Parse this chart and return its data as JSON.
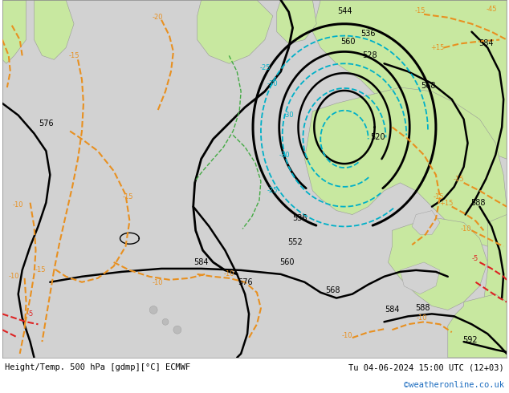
{
  "title_left": "Height/Temp. 500 hPa [gdmp][°C] ECMWF",
  "title_right": "Tu 04-06-2024 15:00 UTC (12+03)",
  "watermark": "©weatheronline.co.uk",
  "fig_width": 6.34,
  "fig_height": 4.9,
  "dpi": 100,
  "sea_color": "#d2d2d2",
  "land_color": "#c8e8a0",
  "land_color2": "#b8d888",
  "black_lw": 1.6,
  "orange_color": "#e89020",
  "cyan_color": "#00b0c8",
  "red_color": "#dd2222",
  "green_color": "#44aa44",
  "label_fs": 7,
  "footer_fs": 7.5,
  "watermark_color": "#1a6bbf"
}
